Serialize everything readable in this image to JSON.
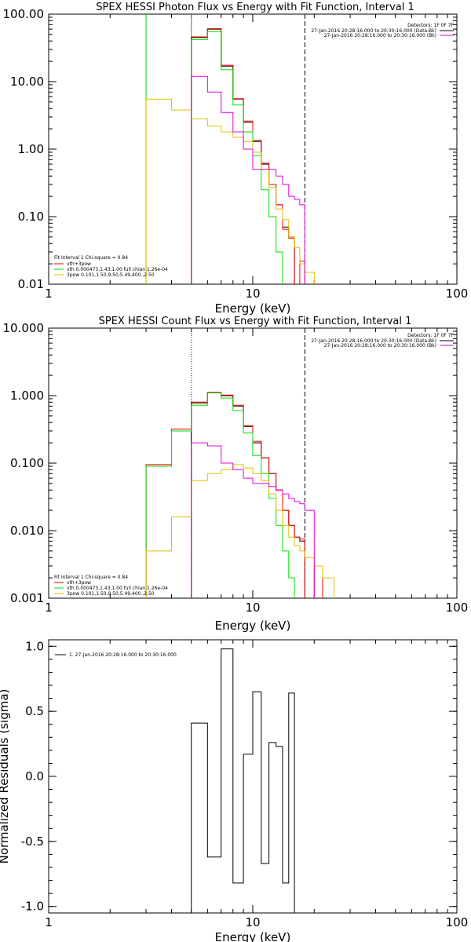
{
  "colors": {
    "black": "#000000",
    "red": "#ff0000",
    "green": "#00e000",
    "magenta": "#e000e0",
    "yellow": "#e0c000"
  },
  "chart_data": [
    {
      "type": "line",
      "title": "SPEX HESSI Photon Flux vs Energy with Fit Function, Interval 1",
      "xlabel": "Energy (keV)",
      "ylabel": "",
      "xscale": "log",
      "yscale": "log",
      "xlim": [
        1,
        100
      ],
      "ylim": [
        0.01,
        100
      ],
      "xticks": [
        "1",
        "10",
        "100"
      ],
      "yticks": [
        "0.01",
        "0.10",
        "1.00",
        "10.00",
        "100.00"
      ],
      "vlines": [
        {
          "x": 3,
          "color": "green",
          "style": "solid"
        },
        {
          "x": 5,
          "color": "green",
          "style": "solid"
        },
        {
          "x": 5,
          "color": "magenta",
          "style": "dotted"
        },
        {
          "x": 18,
          "color": "black",
          "style": "dashed"
        }
      ],
      "top_right_text": [
        "Detectors: 1F 0F 7F",
        "27-Jan-2016 20:28:16.000 to 20:30:16.000 (Data-Bk)",
        "27-Jan-2016 20:28:16.000 to 20:30:16.000 (Bk)"
      ],
      "legend_position": "bottom-left",
      "legend_header": "Fit Interval 1    Chi-square = 0.84",
      "legend": [
        "vth+3pow",
        "vth 0.000473,1.43,1.00  full chian 1.26e-04",
        "3pow 0.101,1.50,9.50,5.49,400.,2.50"
      ],
      "edges": [
        3,
        4,
        5,
        6,
        7,
        8,
        9,
        10,
        11,
        12,
        13,
        14,
        15,
        16,
        17,
        18,
        20,
        22
      ],
      "series": [
        {
          "name": "Data-Bk",
          "color": "black",
          "values": [
            null,
            null,
            45,
            60,
            17,
            5.5,
            2.5,
            1.3,
            0.6,
            0.3,
            0.15,
            0.07,
            0.05,
            null,
            null,
            null,
            null
          ]
        },
        {
          "name": "vth+3pow",
          "color": "red",
          "values": [
            null,
            null,
            46,
            61,
            17.5,
            5.6,
            2.6,
            1.35,
            0.62,
            0.3,
            0.15,
            0.065,
            0.048,
            null,
            0.022,
            null,
            null
          ]
        },
        {
          "name": "vth",
          "color": "green",
          "values": [
            null,
            null,
            42,
            55,
            15,
            4.5,
            1.8,
            0.8,
            0.25,
            0.1,
            0.03,
            null,
            null,
            null,
            null,
            null,
            null
          ]
        },
        {
          "name": "3pow",
          "color": "yellow",
          "values": [
            5.5,
            3.8,
            2.8,
            2.2,
            1.8,
            1.5,
            1.3,
            0.9,
            0.5,
            0.27,
            0.13,
            0.09,
            0.05,
            0.035,
            0.02,
            0.015,
            null
          ]
        },
        {
          "name": "Bk",
          "color": "magenta",
          "values": [
            null,
            null,
            12,
            7,
            3.5,
            1.8,
            1.0,
            0.5,
            0.5,
            0.5,
            0.4,
            0.3,
            0.2,
            0.18,
            0.15,
            null,
            null
          ]
        }
      ]
    },
    {
      "type": "line",
      "title": "SPEX HESSI Count Flux vs Energy with Fit Function, Interval 1",
      "xlabel": "Energy (keV)",
      "ylabel": "",
      "xscale": "log",
      "yscale": "log",
      "xlim": [
        1,
        100
      ],
      "ylim": [
        0.001,
        10
      ],
      "xticks": [
        "1",
        "10",
        "100"
      ],
      "yticks": [
        "0.001",
        "0.010",
        "0.100",
        "1.000",
        "10.000"
      ],
      "vlines": [
        {
          "x": 5,
          "color": "black",
          "style": "dotted"
        },
        {
          "x": 5,
          "color": "magenta",
          "style": "dotted"
        },
        {
          "x": 18,
          "color": "black",
          "style": "dashed"
        }
      ],
      "top_right_text": [
        "Detectors: 1F 0F 7F",
        "27-Jan-2016 20:28:16.000 to 20:30:16.000 (Data-Bk)",
        "27-Jan-2016 20:28:16.000 to 20:30:16.000 (Bk)"
      ],
      "legend_position": "bottom-left",
      "legend_header": "Fit Interval 1    Chi-square = 0.84",
      "legend": [
        "vth+3pow",
        "vth 0.000473,1.43,1.00  full chian 1.26e-04",
        "3pow 0.101,1.50,9.50,5.49,400.,2.50"
      ],
      "edges": [
        3,
        4,
        5,
        6,
        7,
        8,
        9,
        10,
        11,
        12,
        13,
        14,
        15,
        16,
        17,
        18,
        20,
        22,
        25
      ],
      "series": [
        {
          "name": "Data-Bk",
          "color": "black",
          "values": [
            null,
            null,
            0.78,
            1.1,
            1.0,
            0.7,
            0.35,
            0.2,
            0.12,
            0.07,
            0.04,
            0.02,
            0.012,
            0.008,
            0.007,
            null,
            null,
            null
          ]
        },
        {
          "name": "vth+3pow",
          "color": "red",
          "values": [
            0.095,
            0.32,
            0.8,
            1.12,
            1.02,
            0.72,
            0.36,
            0.21,
            0.12,
            0.07,
            0.04,
            0.02,
            0.012,
            0.008,
            0.0075,
            null,
            0.003,
            null
          ]
        },
        {
          "name": "vth",
          "color": "green",
          "values": [
            0.09,
            0.3,
            0.72,
            1.1,
            0.92,
            0.6,
            0.28,
            0.13,
            0.07,
            0.03,
            0.012,
            0.005,
            0.002,
            null,
            null,
            null,
            null,
            null
          ]
        },
        {
          "name": "3pow",
          "color": "yellow",
          "values": [
            0.005,
            0.016,
            0.055,
            0.07,
            0.08,
            0.095,
            0.085,
            0.07,
            0.055,
            0.035,
            0.02,
            0.012,
            0.008,
            0.006,
            0.005,
            0.004,
            0.003,
            0.002
          ]
        },
        {
          "name": "Bk",
          "color": "magenta",
          "values": [
            null,
            null,
            0.2,
            0.18,
            0.1,
            0.08,
            0.06,
            0.05,
            0.05,
            0.045,
            0.04,
            0.035,
            0.03,
            0.027,
            0.025,
            0.02,
            null,
            null
          ]
        }
      ]
    },
    {
      "type": "line",
      "title": "",
      "xlabel": "Energy (keV)",
      "ylabel": "Normalized Residuals (sigma)",
      "xscale": "log",
      "yscale": "linear",
      "xlim": [
        1,
        100
      ],
      "ylim": [
        -1.05,
        1.05
      ],
      "xticks": [
        "1",
        "10",
        "100"
      ],
      "yticks": [
        "-1.0",
        "-0.5",
        "0.0",
        "0.5",
        "1.0"
      ],
      "legend_position": "top-left",
      "legend": [
        "1. 27-Jan-2016 20:28:16.000 to 20:30:16.000"
      ],
      "edges": [
        5,
        6,
        7,
        8,
        9,
        10,
        11,
        12,
        13,
        14,
        15,
        16,
        17,
        18
      ],
      "series": [
        {
          "name": "1. 27-Jan-2016 20:28:16.000 to 20:30:16.000",
          "color": "black",
          "values": [
            0.41,
            -0.62,
            0.98,
            -0.82,
            0.17,
            0.65,
            -0.67,
            0.26,
            0.23,
            -0.82,
            0.64,
            null,
            null
          ]
        }
      ]
    }
  ]
}
